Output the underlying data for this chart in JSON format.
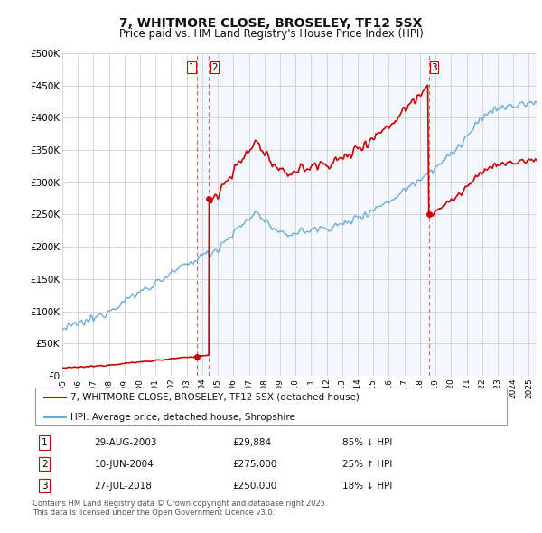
{
  "title": "7, WHITMORE CLOSE, BROSELEY, TF12 5SX",
  "subtitle": "Price paid vs. HM Land Registry's House Price Index (HPI)",
  "hpi_color": "#6aacda",
  "price_color": "#cc0000",
  "background_color": "#ffffff",
  "plot_bg_color": "#ffffff",
  "shade_color": "#ddeeff",
  "ylim": [
    0,
    500000
  ],
  "yticks": [
    0,
    50000,
    100000,
    150000,
    200000,
    250000,
    300000,
    350000,
    400000,
    450000,
    500000
  ],
  "ytick_labels": [
    "£0",
    "£50K",
    "£100K",
    "£150K",
    "£200K",
    "£250K",
    "£300K",
    "£350K",
    "£400K",
    "£450K",
    "£500K"
  ],
  "sale_dates_num": [
    2003.66,
    2004.44,
    2018.57
  ],
  "sale_prices": [
    29884,
    275000,
    250000
  ],
  "sale_labels": [
    "1",
    "2",
    "3"
  ],
  "vline_color": "#cc4444",
  "dot_color": "#cc0000",
  "legend_entries": [
    "7, WHITMORE CLOSE, BROSELEY, TF12 5SX (detached house)",
    "HPI: Average price, detached house, Shropshire"
  ],
  "table_rows": [
    [
      "1",
      "29-AUG-2003",
      "£29,884",
      "85% ↓ HPI"
    ],
    [
      "2",
      "10-JUN-2004",
      "£275,000",
      "25% ↑ HPI"
    ],
    [
      "3",
      "27-JUL-2018",
      "£250,000",
      "18% ↓ HPI"
    ]
  ],
  "footer": "Contains HM Land Registry data © Crown copyright and database right 2025.\nThis data is licensed under the Open Government Licence v3.0.",
  "xmin": 1995,
  "xmax": 2025.5
}
